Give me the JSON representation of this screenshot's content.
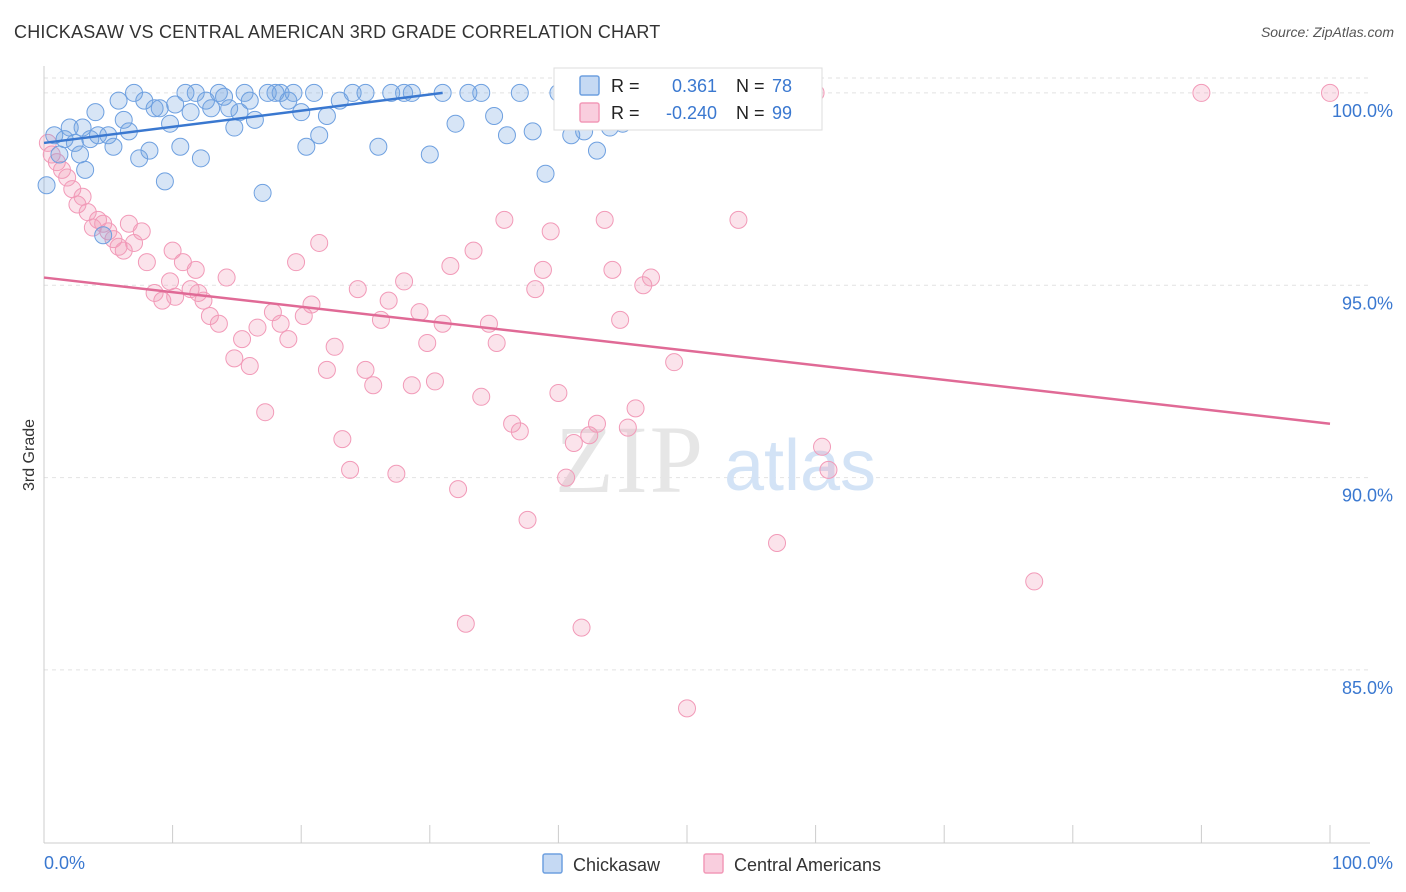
{
  "title": "CHICKASAW VS CENTRAL AMERICAN 3RD GRADE CORRELATION CHART",
  "source": "Source: ZipAtlas.com",
  "watermark": {
    "zip": "ZIP",
    "atlas": "atlas"
  },
  "colors": {
    "blue": "#6ea0e0",
    "blue_line": "#3a78d0",
    "pink": "#f29ab8",
    "pink_line": "#e06a96",
    "tick_label": "#3a78d0"
  },
  "legend_top": [
    {
      "r_label": "R = ",
      "r_value": "0.361",
      "n_label": "N = ",
      "n_value": "78"
    },
    {
      "r_label": "R = ",
      "r_value": "-0.240",
      "n_label": "N = ",
      "n_value": "99"
    }
  ],
  "chart_data": {
    "type": "scatter",
    "title": "CHICKASAW VS CENTRAL AMERICAN 3RD GRADE CORRELATION CHART",
    "xlabel": "",
    "ylabel": "3rd Grade",
    "xlim": [
      0,
      100
    ],
    "ylim": [
      80.5,
      100.7
    ],
    "x_tick_labels": [
      "0.0%",
      "100.0%"
    ],
    "y_ticks": [
      85,
      90,
      95,
      100
    ],
    "y_tick_labels": [
      "85.0%",
      "90.0%",
      "95.0%",
      "100.0%"
    ],
    "grid": true,
    "legend_position": "bottom-center",
    "series": [
      {
        "name": "Chickasaw",
        "color": "#6ea0e0",
        "trend": {
          "x": [
            0,
            31
          ],
          "y": [
            98.7,
            100.0
          ]
        },
        "points": [
          [
            0.2,
            97.6
          ],
          [
            0.8,
            98.9
          ],
          [
            1.2,
            98.4
          ],
          [
            1.6,
            98.8
          ],
          [
            2.0,
            99.1
          ],
          [
            2.4,
            98.7
          ],
          [
            2.8,
            98.4
          ],
          [
            3.0,
            99.1
          ],
          [
            3.2,
            98.0
          ],
          [
            3.6,
            98.8
          ],
          [
            4.0,
            99.5
          ],
          [
            4.2,
            98.9
          ],
          [
            4.6,
            96.3
          ],
          [
            5.0,
            98.9
          ],
          [
            5.4,
            98.6
          ],
          [
            5.8,
            99.8
          ],
          [
            6.2,
            99.3
          ],
          [
            6.6,
            99.0
          ],
          [
            7.0,
            100.0
          ],
          [
            7.4,
            98.3
          ],
          [
            7.8,
            99.8
          ],
          [
            8.2,
            98.5
          ],
          [
            8.6,
            99.6
          ],
          [
            9.0,
            99.6
          ],
          [
            9.4,
            97.7
          ],
          [
            9.8,
            99.2
          ],
          [
            10.2,
            99.7
          ],
          [
            10.6,
            98.6
          ],
          [
            11.0,
            100.0
          ],
          [
            11.4,
            99.5
          ],
          [
            11.8,
            100.0
          ],
          [
            12.2,
            98.3
          ],
          [
            12.6,
            99.8
          ],
          [
            13.0,
            99.6
          ],
          [
            13.6,
            100.0
          ],
          [
            14.0,
            99.9
          ],
          [
            14.4,
            99.6
          ],
          [
            14.8,
            99.1
          ],
          [
            15.2,
            99.5
          ],
          [
            15.6,
            100.0
          ],
          [
            16.0,
            99.8
          ],
          [
            16.4,
            99.3
          ],
          [
            17.0,
            97.4
          ],
          [
            17.4,
            100.0
          ],
          [
            18.0,
            100.0
          ],
          [
            18.4,
            100.0
          ],
          [
            19.0,
            99.8
          ],
          [
            19.4,
            100.0
          ],
          [
            20.0,
            99.5
          ],
          [
            20.4,
            98.6
          ],
          [
            21.0,
            100.0
          ],
          [
            21.4,
            98.9
          ],
          [
            22.0,
            99.4
          ],
          [
            23.0,
            99.8
          ],
          [
            24.0,
            100.0
          ],
          [
            25.0,
            100.0
          ],
          [
            26.0,
            98.6
          ],
          [
            27.0,
            100.0
          ],
          [
            28.0,
            100.0
          ],
          [
            28.6,
            100.0
          ],
          [
            30.0,
            98.4
          ],
          [
            31.0,
            100.0
          ],
          [
            32.0,
            99.2
          ],
          [
            33.0,
            100.0
          ],
          [
            34.0,
            100.0
          ],
          [
            35.0,
            99.4
          ],
          [
            36.0,
            98.9
          ],
          [
            37.0,
            100.0
          ],
          [
            38.0,
            99.0
          ],
          [
            39.0,
            97.9
          ],
          [
            40.0,
            100.0
          ],
          [
            41.0,
            98.9
          ],
          [
            42.0,
            99.0
          ],
          [
            43.0,
            98.5
          ],
          [
            44.0,
            99.1
          ],
          [
            45.0,
            99.2
          ],
          [
            46.0,
            99.6
          ],
          [
            47.0,
            99.5
          ]
        ]
      },
      {
        "name": "Central Americans",
        "color": "#f29ab8",
        "trend": {
          "x": [
            0,
            100
          ],
          "y": [
            95.2,
            91.4
          ]
        },
        "points": [
          [
            0.3,
            98.7
          ],
          [
            0.6,
            98.4
          ],
          [
            1.0,
            98.2
          ],
          [
            1.4,
            98.0
          ],
          [
            1.8,
            97.8
          ],
          [
            2.2,
            97.5
          ],
          [
            2.6,
            97.1
          ],
          [
            3.0,
            97.3
          ],
          [
            3.4,
            96.9
          ],
          [
            3.8,
            96.5
          ],
          [
            4.2,
            96.7
          ],
          [
            4.6,
            96.6
          ],
          [
            5.0,
            96.4
          ],
          [
            5.4,
            96.2
          ],
          [
            5.8,
            96.0
          ],
          [
            6.2,
            95.9
          ],
          [
            6.6,
            96.6
          ],
          [
            7.0,
            96.1
          ],
          [
            7.6,
            96.4
          ],
          [
            8.0,
            95.6
          ],
          [
            8.6,
            94.8
          ],
          [
            9.2,
            94.6
          ],
          [
            9.8,
            95.1
          ],
          [
            10.2,
            94.7
          ],
          [
            10.8,
            95.6
          ],
          [
            11.4,
            94.9
          ],
          [
            11.8,
            95.4
          ],
          [
            12.4,
            94.6
          ],
          [
            12.9,
            94.2
          ],
          [
            13.6,
            94.0
          ],
          [
            14.2,
            95.2
          ],
          [
            14.8,
            93.1
          ],
          [
            15.4,
            93.6
          ],
          [
            16.0,
            92.9
          ],
          [
            16.6,
            93.9
          ],
          [
            17.2,
            91.7
          ],
          [
            17.8,
            94.3
          ],
          [
            18.4,
            94.0
          ],
          [
            19.0,
            93.6
          ],
          [
            19.6,
            95.6
          ],
          [
            20.2,
            94.2
          ],
          [
            20.8,
            94.5
          ],
          [
            21.4,
            96.1
          ],
          [
            22.0,
            92.8
          ],
          [
            22.6,
            93.4
          ],
          [
            23.2,
            91.0
          ],
          [
            23.8,
            90.2
          ],
          [
            24.4,
            94.9
          ],
          [
            25.0,
            92.8
          ],
          [
            25.6,
            92.4
          ],
          [
            26.2,
            94.1
          ],
          [
            26.8,
            94.6
          ],
          [
            27.4,
            90.1
          ],
          [
            28.0,
            95.1
          ],
          [
            28.6,
            92.4
          ],
          [
            29.2,
            94.3
          ],
          [
            29.8,
            93.5
          ],
          [
            30.4,
            92.5
          ],
          [
            31.0,
            94.0
          ],
          [
            31.6,
            95.5
          ],
          [
            32.2,
            89.7
          ],
          [
            32.8,
            86.2
          ],
          [
            33.4,
            95.9
          ],
          [
            34.0,
            92.1
          ],
          [
            34.6,
            94.0
          ],
          [
            35.2,
            93.5
          ],
          [
            35.8,
            96.7
          ],
          [
            36.4,
            91.4
          ],
          [
            37.0,
            91.2
          ],
          [
            37.6,
            88.9
          ],
          [
            38.2,
            94.9
          ],
          [
            38.8,
            95.4
          ],
          [
            39.4,
            96.4
          ],
          [
            40.0,
            92.2
          ],
          [
            40.6,
            90.0
          ],
          [
            41.2,
            90.9
          ],
          [
            41.8,
            86.1
          ],
          [
            42.4,
            91.1
          ],
          [
            43.0,
            91.4
          ],
          [
            43.6,
            96.7
          ],
          [
            44.2,
            95.4
          ],
          [
            44.8,
            94.1
          ],
          [
            45.4,
            91.3
          ],
          [
            46.0,
            91.8
          ],
          [
            46.6,
            95.0
          ],
          [
            47.2,
            95.2
          ],
          [
            48.0,
            100.0
          ],
          [
            49.0,
            93.0
          ],
          [
            50.0,
            84.0
          ],
          [
            54.0,
            96.7
          ],
          [
            57.0,
            88.3
          ],
          [
            60.0,
            100.0
          ],
          [
            60.5,
            90.8
          ],
          [
            61.0,
            90.2
          ],
          [
            77.0,
            87.3
          ],
          [
            90.0,
            100.0
          ],
          [
            100.0,
            100.0
          ],
          [
            10.0,
            95.9
          ],
          [
            12.0,
            94.8
          ]
        ]
      }
    ]
  }
}
